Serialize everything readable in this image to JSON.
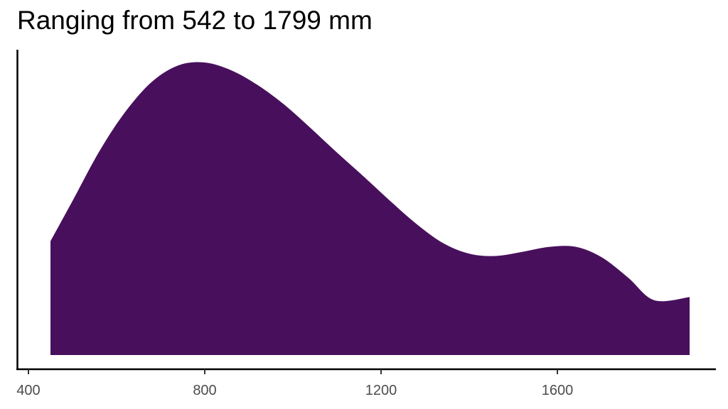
{
  "chart_data": {
    "type": "area",
    "title": "Ranging from 542 to 1799 mm",
    "xlabel": "",
    "ylabel": "",
    "xlim": [
      380,
      1760
    ],
    "ylim": [
      0,
      1.0
    ],
    "xticks": [
      400,
      800,
      1200,
      1600
    ],
    "x_tick_labels": [
      "400",
      "800",
      "1200",
      "1600"
    ],
    "grid": false,
    "legend": "none",
    "fill_color": "#48105c",
    "series": [
      {
        "x": [
          450,
          500,
          560,
          620,
          680,
          740,
          800,
          860,
          920,
          980,
          1040,
          1100,
          1160,
          1220,
          1280,
          1340,
          1400,
          1460,
          1520,
          1580,
          1640,
          1700,
          1760,
          1820,
          1900
        ],
        "values": [
          0.393,
          0.532,
          0.701,
          0.84,
          0.943,
          1.0,
          1.01,
          0.983,
          0.932,
          0.865,
          0.784,
          0.699,
          0.617,
          0.533,
          0.453,
          0.387,
          0.35,
          0.342,
          0.356,
          0.373,
          0.374,
          0.338,
          0.268,
          0.189,
          0.2
        ]
      }
    ]
  }
}
